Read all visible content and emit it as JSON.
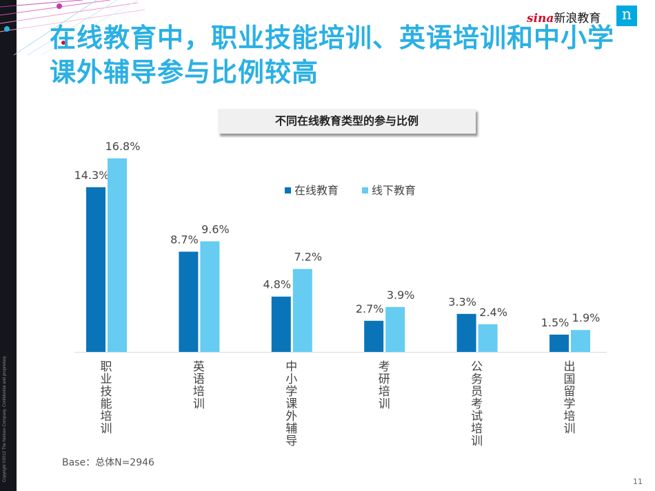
{
  "slide": {
    "title": "在线教育中，职业技能培训、英语培训和中小学课外辅导参与比例较高",
    "logo_text": "新浪教育",
    "logo_brand": "sina",
    "brand_mark": "n",
    "copyright": "Copyright ©2012 The Nielsen Company. Confidential and proprietary.",
    "base_note": "Base：总体N=2946",
    "page_number": "11",
    "accent_color": "#2ab0e4"
  },
  "chart_data": {
    "type": "bar",
    "title": "不同在线教育类型的参与比例",
    "categories": [
      "职业技能培训",
      "英语培训",
      "中小学课外辅导",
      "考研培训",
      "公务员考试培训",
      "出国留学培训"
    ],
    "series": [
      {
        "name": "在线教育",
        "values": [
          14.3,
          8.7,
          4.8,
          2.7,
          3.3,
          1.5
        ],
        "color": "#0a74b9"
      },
      {
        "name": "线下教育",
        "values": [
          16.8,
          9.6,
          7.2,
          3.9,
          2.4,
          1.9
        ],
        "color": "#66ccf2"
      }
    ],
    "value_suffix": "%",
    "ylim": [
      0,
      16.8
    ],
    "grid": false,
    "legend_position": "top-right",
    "xlabel": "",
    "ylabel": ""
  }
}
